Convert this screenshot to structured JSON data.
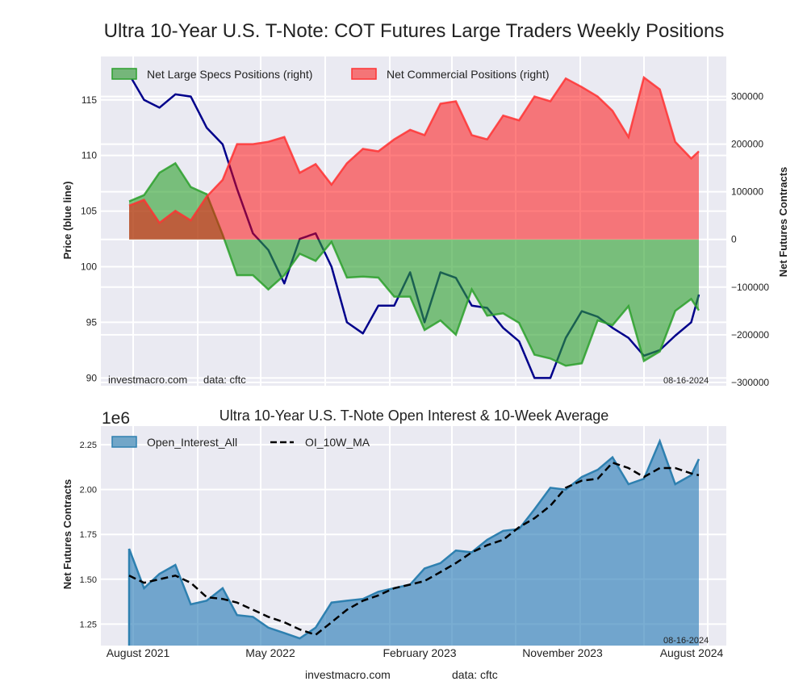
{
  "chart_data": [
    {
      "type": "area",
      "title": "Ultra 10-Year U.S. T-Note: COT Futures Large Traders Weekly Positions",
      "ylabel_left": "Price (blue line)",
      "ylabel_right": "Net Futures Contracts",
      "ylim_left": [
        89.3,
        118.9
      ],
      "ylim_right": [
        -307000,
        384000
      ],
      "yticks_left": [
        "115",
        "110",
        "105",
        "100",
        "95",
        "90"
      ],
      "yticks_right": [
        "300000",
        "200000",
        "100000",
        "0",
        "−100000",
        "−200000",
        "−300000"
      ],
      "grid": true,
      "legend_position": "top-left",
      "footer_left": "investmacro.com",
      "footer_mid": "data: cftc",
      "date_label": "08-16-2024",
      "x": [
        "2021-08-03",
        "2021-09-01",
        "2021-10-01",
        "2021-11-01",
        "2021-12-01",
        "2022-01-01",
        "2022-02-01",
        "2022-03-01",
        "2022-04-01",
        "2022-05-01",
        "2022-06-01",
        "2022-07-01",
        "2022-08-01",
        "2022-09-01",
        "2022-10-01",
        "2022-11-01",
        "2022-12-01",
        "2023-01-01",
        "2023-02-01",
        "2023-03-01",
        "2023-04-01",
        "2023-05-01",
        "2023-06-01",
        "2023-07-01",
        "2023-08-01",
        "2023-09-01",
        "2023-10-01",
        "2023-11-01",
        "2023-12-01",
        "2024-01-01",
        "2024-02-01",
        "2024-03-01",
        "2024-04-01",
        "2024-05-01",
        "2024-06-01",
        "2024-07-01",
        "2024-08-01",
        "2024-08-16"
      ],
      "series": [
        {
          "name": "Net Large Specs Positions (right)",
          "axis": "right",
          "color": "#2ca02c",
          "values": [
            80000,
            93000,
            140000,
            160000,
            110000,
            95000,
            10000,
            -75000,
            -75000,
            -105000,
            -75000,
            -30000,
            -45000,
            -5000,
            -80000,
            -78000,
            -80000,
            -120000,
            -120000,
            -190000,
            -170000,
            -200000,
            -105000,
            -160000,
            -155000,
            -175000,
            -242000,
            -250000,
            -265000,
            -260000,
            -170000,
            -180000,
            -140000,
            -255000,
            -235000,
            -150000,
            -125000,
            -149000
          ]
        },
        {
          "name": "Net Commercial Positions (right)",
          "axis": "right",
          "color": "#ff3333",
          "values": [
            71000,
            83000,
            35000,
            60000,
            40000,
            90000,
            125000,
            200000,
            200000,
            205000,
            215000,
            140000,
            158000,
            115000,
            160000,
            190000,
            185000,
            210000,
            230000,
            219000,
            285000,
            290000,
            219000,
            210000,
            260000,
            250000,
            300000,
            290000,
            338000,
            320000,
            300000,
            270000,
            215000,
            340000,
            315000,
            205000,
            170000,
            185000
          ]
        },
        {
          "axis": "left",
          "color": "#00008b",
          "values": [
            117.3,
            115,
            114.3,
            115.5,
            115.3,
            112.5,
            111,
            107,
            103,
            101.5,
            98.5,
            102.5,
            103,
            100,
            95,
            94,
            96.5,
            96.5,
            99.5,
            95,
            99.5,
            99,
            96.5,
            96.3,
            94.5,
            93.3,
            90,
            90,
            93.6,
            96,
            95.5,
            94.5,
            93.6,
            92,
            92.5,
            93.8,
            95,
            97.5
          ]
        }
      ]
    },
    {
      "type": "area",
      "title": "Ultra 10-Year U.S. T-Note Open Interest & 10-Week Average",
      "ylabel": "Net Futures Contracts",
      "yscale_label": "1e6",
      "ylim": [
        1130000,
        2480000
      ],
      "yticks": [
        "2.25",
        "2.00",
        "1.75",
        "1.50",
        "1.25"
      ],
      "xticks": [
        "August 2021",
        "May 2022",
        "February 2023",
        "November 2023",
        "August 2024"
      ],
      "grid": true,
      "legend_position": "top-left",
      "date_label": "08-16-2024",
      "footer_left": "investmacro.com",
      "footer_right": "data: cftc",
      "x": [
        "2021-08-03",
        "2021-09-01",
        "2021-10-01",
        "2021-11-01",
        "2021-12-01",
        "2022-01-01",
        "2022-02-01",
        "2022-03-01",
        "2022-04-01",
        "2022-05-01",
        "2022-06-01",
        "2022-07-01",
        "2022-08-01",
        "2022-09-01",
        "2022-10-01",
        "2022-11-01",
        "2022-12-01",
        "2023-01-01",
        "2023-02-01",
        "2023-03-01",
        "2023-04-01",
        "2023-05-01",
        "2023-06-01",
        "2023-07-01",
        "2023-08-01",
        "2023-09-01",
        "2023-10-01",
        "2023-11-01",
        "2023-12-01",
        "2024-01-01",
        "2024-02-01",
        "2024-03-01",
        "2024-04-01",
        "2024-05-01",
        "2024-06-01",
        "2024-07-01",
        "2024-08-01",
        "2024-08-16"
      ],
      "series": [
        {
          "name": "Open_Interest_All",
          "color": "#1f77b4",
          "values": [
            1670000,
            1450000,
            1530000,
            1580000,
            1360000,
            1380000,
            1450000,
            1300000,
            1290000,
            1230000,
            1200000,
            1170000,
            1230000,
            1370000,
            1380000,
            1390000,
            1430000,
            1450000,
            1470000,
            1560000,
            1590000,
            1660000,
            1650000,
            1720000,
            1770000,
            1780000,
            1890000,
            2010000,
            2000000,
            2070000,
            2110000,
            2180000,
            2030000,
            2060000,
            2270000,
            2030000,
            2080000,
            2170000
          ]
        },
        {
          "name": "OI_10W_MA",
          "color": "#000000",
          "values": [
            1520000,
            1480000,
            1500000,
            1520000,
            1480000,
            1400000,
            1390000,
            1370000,
            1330000,
            1290000,
            1260000,
            1220000,
            1190000,
            1260000,
            1330000,
            1380000,
            1410000,
            1450000,
            1470000,
            1490000,
            1540000,
            1590000,
            1650000,
            1690000,
            1720000,
            1790000,
            1840000,
            1910000,
            2010000,
            2050000,
            2060000,
            2150000,
            2120000,
            2070000,
            2120000,
            2120000,
            2090000,
            2080000
          ]
        }
      ]
    }
  ]
}
